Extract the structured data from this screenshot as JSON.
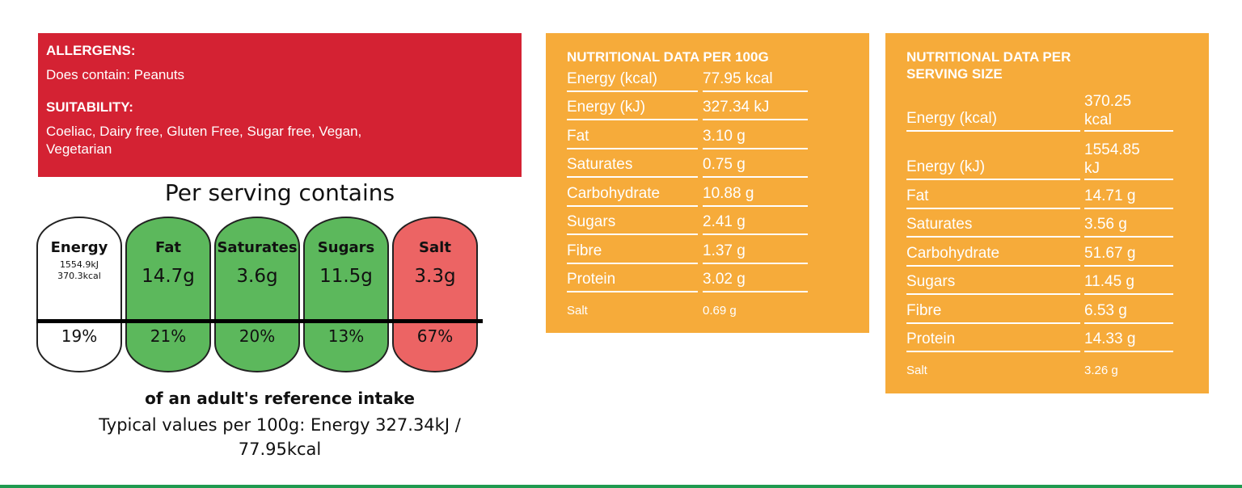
{
  "allergens": {
    "heading": "ALLERGENS:",
    "text": "Does contain: Peanuts"
  },
  "suitability": {
    "heading": "SUITABILITY:",
    "line1": "Coeliac, Dairy free, Gluten Free, Sugar free, Vegan,",
    "line2": "Vegetarian"
  },
  "traffic_light": {
    "title": "Per serving contains",
    "colors": {
      "white": "#ffffff",
      "green": "#5cb85c",
      "red": "#ec6464"
    },
    "energy": {
      "name": "Energy",
      "kj": "1554.9kJ",
      "kcal": "370.3kcal",
      "pct": "19%"
    },
    "items": [
      {
        "name": "Fat",
        "value": "14.7g",
        "pct": "21%",
        "color": "#5cb85c"
      },
      {
        "name": "Saturates",
        "value": "3.6g",
        "pct": "20%",
        "color": "#5cb85c"
      },
      {
        "name": "Sugars",
        "value": "11.5g",
        "pct": "13%",
        "color": "#5cb85c"
      },
      {
        "name": "Salt",
        "value": "3.3g",
        "pct": "67%",
        "color": "#ec6464"
      }
    ],
    "caption_bold": "of an adult's reference intake",
    "caption_line1": "Typical values per 100g: Energy 327.34kJ /",
    "caption_line2": "77.95kcal"
  },
  "per100": {
    "title": "NUTRITIONAL DATA PER 100G",
    "rows": [
      {
        "label": "Energy (kcal)",
        "value": "77.95 kcal"
      },
      {
        "label": "Energy (kJ)",
        "value": "327.34 kJ"
      },
      {
        "label": "Fat",
        "value": "3.10 g"
      },
      {
        "label": "Saturates",
        "value": "0.75 g"
      },
      {
        "label": "Carbohydrate",
        "value": "10.88 g"
      },
      {
        "label": "Sugars",
        "value": "2.41 g"
      },
      {
        "label": "Fibre",
        "value": "1.37 g"
      },
      {
        "label": "Protein",
        "value": "3.02 g"
      },
      {
        "label": "Salt",
        "value": "0.69 g"
      }
    ]
  },
  "perserving": {
    "title_line1": "NUTRITIONAL DATA PER",
    "title_line2": "SERVING SIZE",
    "rows": [
      {
        "label": "Energy (kcal)",
        "value_line1": "370.25",
        "value_line2": "kcal"
      },
      {
        "label": "Energy (kJ)",
        "value_line1": "1554.85",
        "value_line2": "kJ"
      },
      {
        "label": "Fat",
        "value": "14.71 g"
      },
      {
        "label": "Saturates",
        "value": "3.56 g"
      },
      {
        "label": "Carbohydrate",
        "value": "51.67 g"
      },
      {
        "label": "Sugars",
        "value": "11.45 g"
      },
      {
        "label": "Fibre",
        "value": "6.53 g"
      },
      {
        "label": "Protein",
        "value": "14.33 g"
      },
      {
        "label": "Salt",
        "value": "3.26 g"
      }
    ]
  }
}
